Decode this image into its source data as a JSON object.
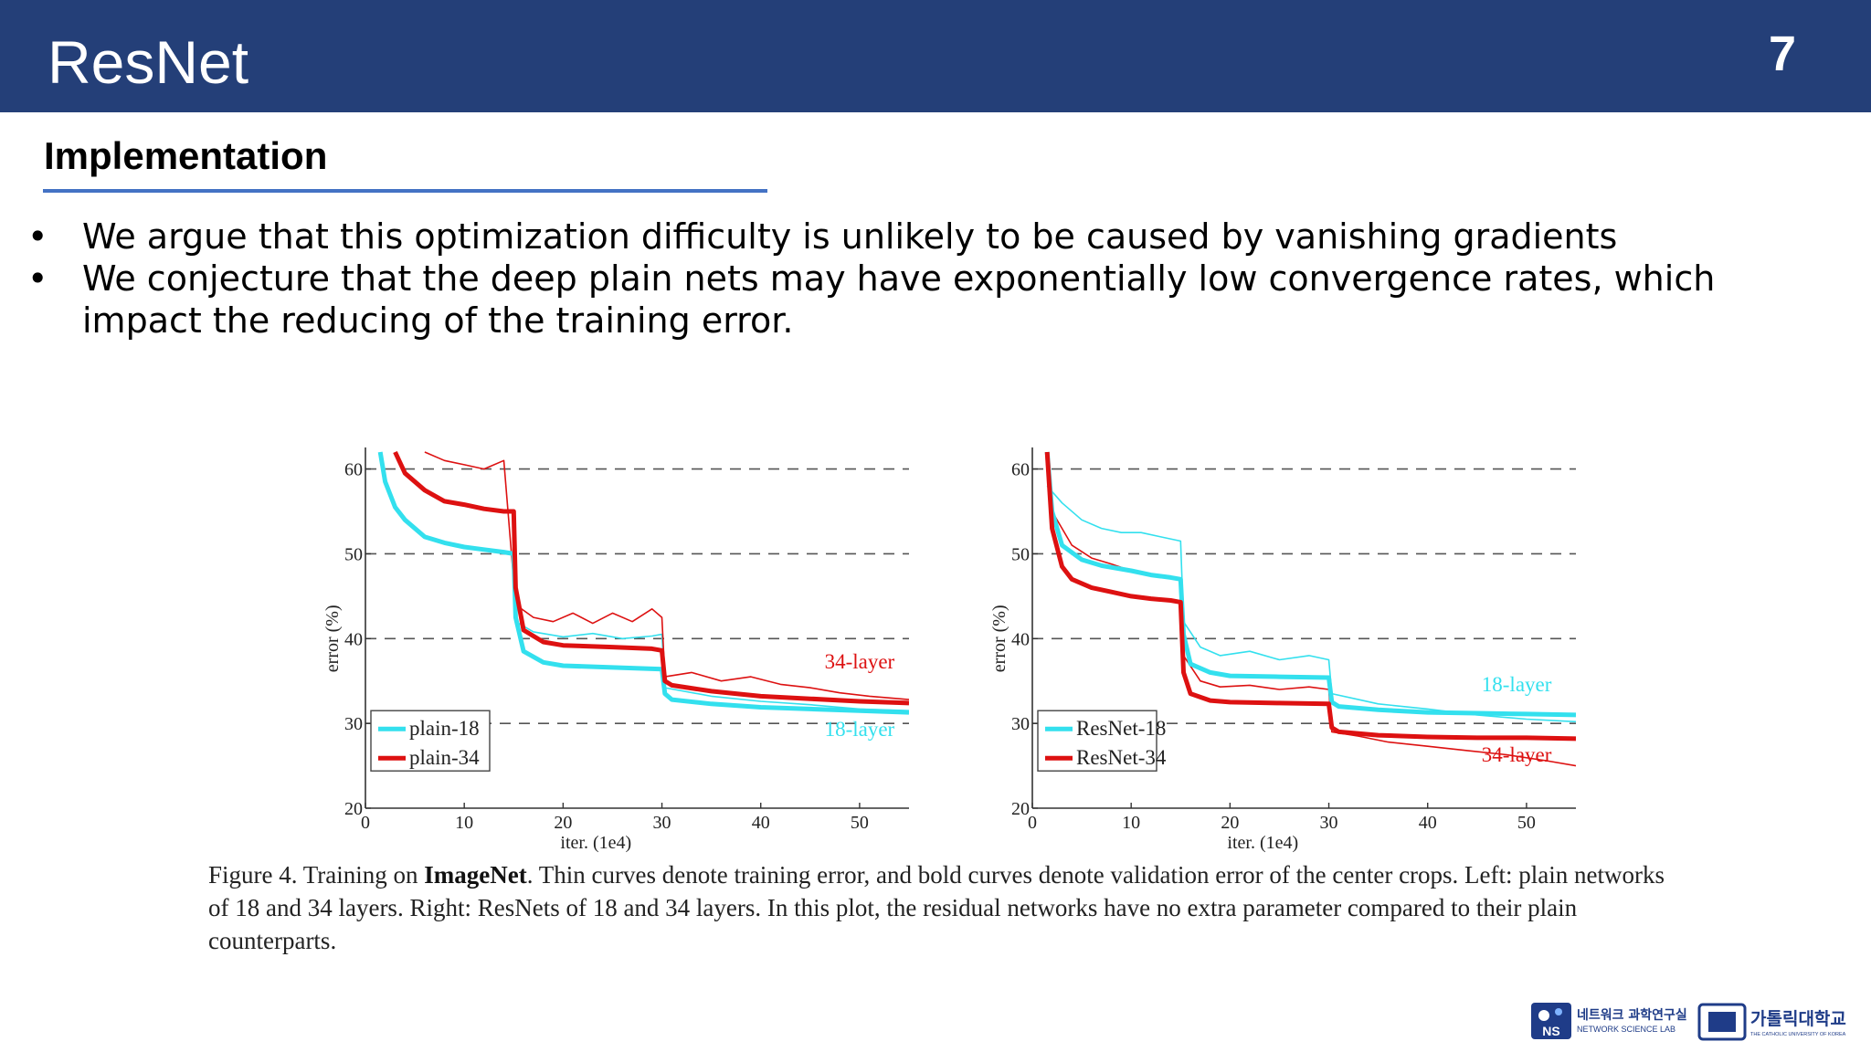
{
  "slide": {
    "title": "ResNet",
    "page_number": "7"
  },
  "section": {
    "heading": "Implementation"
  },
  "bullets": [
    {
      "marker": "•",
      "text": "We argue that this optimization difficulty is unlikely to be caused by vanishing gradients"
    },
    {
      "marker": "•",
      "text": "We conjecture that the deep plain nets may have exponentially low convergence rates, which impact the reducing of the training error."
    }
  ],
  "colors": {
    "header": "#243F78",
    "rule": "#4472C4",
    "cyan": "#33E0EE",
    "red": "#DD1111"
  },
  "chart_data": [
    {
      "type": "line",
      "panel": "left",
      "xlabel": "iter. (1e4)",
      "ylabel": "error (%)",
      "xlim": [
        0,
        55
      ],
      "ylim": [
        20,
        62
      ],
      "xticks": [
        0,
        10,
        20,
        30,
        40,
        50
      ],
      "yticks": [
        20,
        30,
        40,
        50,
        60
      ],
      "grid": "dashed horizontal at 30, 40, 50, 60",
      "legend": {
        "position": "bottom-left",
        "entries": [
          "plain-18",
          "plain-34"
        ]
      },
      "annotations": [
        {
          "text": "34-layer",
          "x": 50,
          "y": 36.5,
          "color": "red"
        },
        {
          "text": "18-layer",
          "x": 50,
          "y": 28.5,
          "color": "cyan"
        }
      ],
      "series": [
        {
          "name": "plain-18",
          "style": "bold",
          "color": "cyan",
          "x": [
            1.5,
            2,
            3,
            4,
            6,
            8,
            10,
            12,
            14,
            15,
            15.2,
            16,
            18,
            20,
            25,
            30,
            30.3,
            31,
            35,
            40,
            45,
            50,
            55
          ],
          "y": [
            62,
            58.5,
            55.5,
            54,
            52,
            51.3,
            50.8,
            50.5,
            50.2,
            50,
            42.5,
            38.5,
            37.2,
            36.8,
            36.6,
            36.4,
            33.5,
            32.8,
            32.3,
            31.9,
            31.7,
            31.5,
            31.3
          ]
        },
        {
          "name": "plain-18 train",
          "style": "thin",
          "color": "cyan",
          "x": [
            15.2,
            17,
            20,
            23,
            26,
            29,
            30,
            30.3,
            35,
            40,
            45,
            50,
            55
          ],
          "y": [
            42,
            40.8,
            40.2,
            40.6,
            40,
            40.3,
            40.5,
            34.2,
            33.2,
            32.6,
            32.2,
            31.7,
            31.5
          ]
        },
        {
          "name": "plain-34",
          "style": "bold",
          "color": "red",
          "x": [
            3,
            4,
            6,
            8,
            10,
            12,
            14,
            15,
            15.2,
            16,
            18,
            20,
            25,
            29,
            30,
            30.3,
            31,
            35,
            40,
            45,
            50,
            55
          ],
          "y": [
            62,
            59.5,
            57.5,
            56.2,
            55.8,
            55.3,
            55,
            55,
            46,
            41,
            39.6,
            39.2,
            39,
            38.8,
            38.6,
            35,
            34.5,
            33.8,
            33.2,
            32.9,
            32.6,
            32.4
          ]
        },
        {
          "name": "plain-34 train",
          "style": "thin",
          "color": "red",
          "x": [
            6,
            8,
            10,
            12,
            14,
            15.2,
            17,
            19,
            21,
            23,
            25,
            27,
            29,
            30,
            30.3,
            33,
            36,
            39,
            42,
            45,
            48,
            51,
            55
          ],
          "y": [
            62,
            61,
            60.5,
            60,
            61,
            44,
            42.5,
            42,
            43,
            41.8,
            43,
            42,
            43.5,
            42.5,
            35.5,
            36,
            35,
            35.5,
            34.6,
            34.2,
            33.6,
            33.2,
            32.8
          ]
        }
      ]
    },
    {
      "type": "line",
      "panel": "right",
      "xlabel": "iter. (1e4)",
      "ylabel": "error (%)",
      "xlim": [
        0,
        55
      ],
      "ylim": [
        20,
        62
      ],
      "xticks": [
        0,
        10,
        20,
        30,
        40,
        50
      ],
      "yticks": [
        20,
        30,
        40,
        50,
        60
      ],
      "grid": "dashed horizontal at 30, 40, 50, 60",
      "legend": {
        "position": "bottom-left",
        "entries": [
          "ResNet-18",
          "ResNet-34"
        ]
      },
      "annotations": [
        {
          "text": "18-layer",
          "x": 49,
          "y": 33.8,
          "color": "cyan"
        },
        {
          "text": "34-layer",
          "x": 49,
          "y": 25.5,
          "color": "red"
        }
      ],
      "series": [
        {
          "name": "ResNet-18",
          "style": "bold",
          "color": "cyan",
          "x": [
            1.5,
            2,
            3,
            5,
            7,
            10,
            12,
            14,
            15,
            15.3,
            16,
            18,
            20,
            25,
            30,
            30.3,
            31,
            35,
            40,
            45,
            50,
            55
          ],
          "y": [
            62,
            55,
            51,
            49.3,
            48.6,
            48,
            47.5,
            47.2,
            47,
            40.5,
            37,
            36,
            35.6,
            35.5,
            35.4,
            32.5,
            32,
            31.6,
            31.3,
            31.2,
            31.1,
            31
          ]
        },
        {
          "name": "ResNet-18 train",
          "style": "thin",
          "color": "cyan",
          "x": [
            1.5,
            3,
            5,
            7,
            9,
            11,
            13,
            15,
            15.3,
            17,
            19,
            22,
            25,
            28,
            30,
            30.3,
            35,
            40,
            45,
            50,
            55
          ],
          "y": [
            58,
            56,
            54,
            53,
            52.5,
            52.5,
            52,
            51.5,
            42,
            39,
            38,
            38.5,
            37.5,
            38,
            37.5,
            33.5,
            32.3,
            31.7,
            31,
            30.5,
            30.2
          ]
        },
        {
          "name": "ResNet-34",
          "style": "bold",
          "color": "red",
          "x": [
            1.5,
            2,
            3,
            4,
            6,
            8,
            10,
            12,
            14,
            15,
            15.3,
            16,
            18,
            20,
            25,
            30,
            30.3,
            31,
            35,
            40,
            45,
            50,
            55
          ],
          "y": [
            62,
            53,
            48.5,
            47,
            46,
            45.5,
            45,
            44.7,
            44.5,
            44.3,
            36,
            33.5,
            32.7,
            32.5,
            32.4,
            32.3,
            29.5,
            29,
            28.6,
            28.4,
            28.3,
            28.3,
            28.2
          ]
        },
        {
          "name": "ResNet-34 train",
          "style": "thin",
          "color": "red",
          "x": [
            1.5,
            2,
            4,
            6,
            8,
            10,
            12,
            14,
            15,
            15.3,
            17,
            19,
            22,
            25,
            28,
            30,
            30.3,
            33,
            36,
            40,
            44,
            48,
            52,
            55
          ],
          "y": [
            60,
            55,
            51,
            49.5,
            48.8,
            48,
            47.5,
            47.2,
            47,
            38,
            35,
            34.3,
            34.5,
            34,
            34.3,
            34,
            29,
            28.5,
            27.8,
            27.3,
            26.8,
            26.3,
            25.6,
            25
          ]
        }
      ]
    }
  ],
  "caption": {
    "prefix": "Figure 4. Training on ",
    "bold": "ImageNet",
    "rest": ". Thin curves denote training error, and bold curves denote validation error of the center crops. Left: plain networks of 18 and 34 layers. Right: ResNets of 18 and 34 layers. In this plot, the residual networks have no extra parameter compared to their plain counterparts."
  },
  "logos": {
    "ns_lab_korean": "네트워크 과학연구실",
    "ns_lab_english": "NETWORK SCIENCE LAB",
    "university_korean": "가톨릭대학교",
    "university_english": "THE CATHOLIC UNIVERSITY OF KOREA"
  }
}
